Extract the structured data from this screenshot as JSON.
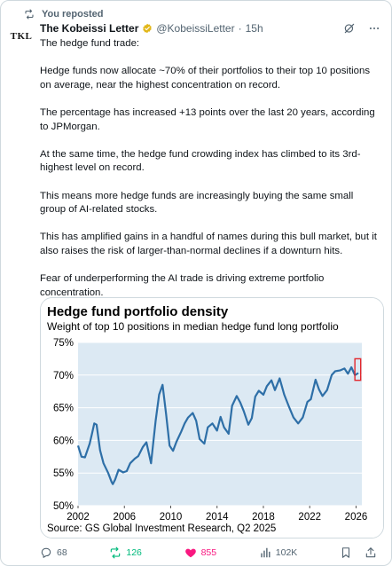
{
  "repost_banner": {
    "label": "You reposted"
  },
  "author": {
    "avatar_text": "TKL",
    "name": "The Kobeissi Letter",
    "handle": "@KobeissiLetter",
    "time": "15h",
    "verified_color": "#e2b719"
  },
  "tweet": {
    "paragraphs": [
      "The hedge fund trade:",
      "Hedge funds now allocate ~70% of their portfolios to their top 10 positions on average, near the highest concentration on record.",
      "The percentage has increased +13 points over the last 20 years, according to JPMorgan.",
      "At the same time, the hedge fund crowding index has climbed to its 3rd-highest level on record.",
      "This means more hedge funds are increasingly buying the same small group of AI-related stocks.",
      "This has amplified gains in a handful of names during this bull market, but it also raises the risk of larger-than-normal declines if a downturn hits.",
      "Fear of underperforming the AI trade is driving extreme portfolio concentration."
    ]
  },
  "chart_data": {
    "type": "line",
    "title": "Hedge fund portfolio density",
    "subtitle": "Weight of top 10 positions in median hedge fund long portfolio",
    "source": "Source: GS Global Investment Research, Q2 2025",
    "xlim": [
      2002,
      2026.5
    ],
    "ylim": [
      50,
      75
    ],
    "x_ticks": [
      2002,
      2006,
      2010,
      2014,
      2018,
      2022,
      2026
    ],
    "x_tick_labels": [
      "2002",
      "2006",
      "2010",
      "2014",
      "2018",
      "2022",
      "2026"
    ],
    "y_ticks": [
      50,
      55,
      60,
      65,
      70,
      75
    ],
    "y_tick_labels": [
      "50%",
      "55%",
      "60%",
      "65%",
      "70%",
      "75%"
    ],
    "grid": true,
    "line_color": "#2e6fa7",
    "highlight_color": "#e3262b",
    "highlight_x": [
      2025.9,
      2026.4
    ],
    "highlight_y": [
      69.2,
      72.5
    ],
    "series": [
      {
        "x": [
          2002.0,
          2002.3,
          2002.6,
          2003.0,
          2003.2,
          2003.4,
          2003.6,
          2003.9,
          2004.2,
          2004.6,
          2004.9,
          2005.0,
          2005.2,
          2005.5,
          2005.9,
          2006.2,
          2006.5,
          2006.9,
          2007.2,
          2007.6,
          2007.9,
          2008.3,
          2008.7,
          2009.0,
          2009.3,
          2009.6,
          2009.9,
          2010.2,
          2010.5,
          2010.9,
          2011.2,
          2011.5,
          2011.9,
          2012.2,
          2012.5,
          2012.9,
          2013.2,
          2013.6,
          2014.0,
          2014.3,
          2014.6,
          2015.0,
          2015.3,
          2015.7,
          2016.0,
          2016.3,
          2016.7,
          2017.0,
          2017.3,
          2017.6,
          2018.0,
          2018.3,
          2018.7,
          2019.0,
          2019.4,
          2019.8,
          2020.2,
          2020.6,
          2021.0,
          2021.4,
          2021.8,
          2022.1,
          2022.5,
          2022.8,
          2023.1,
          2023.5,
          2023.9,
          2024.2,
          2024.6,
          2025.0,
          2025.3,
          2025.6,
          2025.9,
          2026.2
        ],
        "y": [
          59.2,
          57.5,
          57.4,
          59.5,
          61.0,
          62.6,
          62.4,
          58.5,
          56.5,
          55.0,
          53.6,
          53.3,
          54.0,
          55.5,
          55.1,
          55.3,
          56.5,
          57.2,
          57.6,
          59.0,
          59.7,
          56.5,
          63.0,
          67.0,
          68.5,
          64.0,
          59.2,
          58.4,
          59.8,
          61.3,
          62.6,
          63.5,
          64.2,
          63.0,
          60.2,
          59.5,
          62.0,
          62.6,
          61.5,
          63.6,
          62.0,
          61.0,
          65.3,
          66.8,
          65.8,
          64.5,
          62.4,
          63.4,
          66.7,
          67.6,
          67.0,
          68.3,
          69.2,
          67.7,
          69.5,
          67.0,
          65.2,
          63.5,
          62.6,
          63.5,
          65.9,
          66.3,
          69.3,
          67.8,
          66.8,
          67.7,
          70.0,
          70.6,
          70.7,
          71.0,
          70.2,
          71.2,
          70.0,
          70.3
        ]
      }
    ]
  },
  "actions": {
    "replies": "68",
    "reposts": "126",
    "likes": "855",
    "views": "102K",
    "repost_color": "#00ba7c",
    "like_color": "#f91880",
    "muted_color": "#536471"
  }
}
